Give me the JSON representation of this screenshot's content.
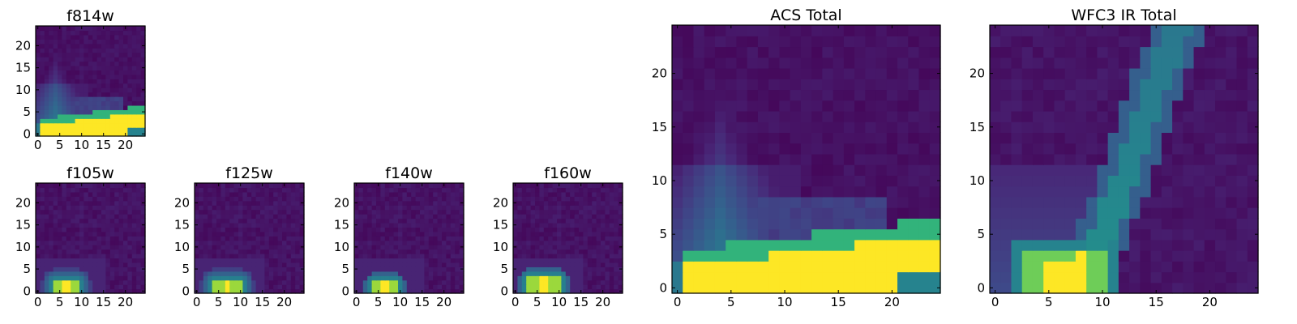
{
  "figure": {
    "colormap": "viridis",
    "colors": {
      "low": "#440154",
      "mid": "#21918c",
      "high": "#fde725",
      "frame": "#000000"
    }
  },
  "chart_data": [
    {
      "id": "f814w",
      "type": "heatmap",
      "title": "f814w",
      "xlim": [
        0,
        24
      ],
      "ylim": [
        0,
        24
      ],
      "xticks": [
        "0",
        "5",
        "10",
        "15",
        "20"
      ],
      "yticks": [
        "0",
        "5",
        "10",
        "15",
        "20"
      ],
      "pattern": "acs"
    },
    {
      "id": "f105w",
      "type": "heatmap",
      "title": "f105w",
      "xlim": [
        0,
        24
      ],
      "ylim": [
        0,
        24
      ],
      "xticks": [
        "0",
        "5",
        "10",
        "15",
        "20"
      ],
      "yticks": [
        "0",
        "5",
        "10",
        "15",
        "20"
      ],
      "pattern": "blob",
      "blob": {
        "x": [
          4,
          9
        ],
        "y": [
          0,
          2
        ],
        "halo": 3
      }
    },
    {
      "id": "f125w",
      "type": "heatmap",
      "title": "f125w",
      "xlim": [
        0,
        24
      ],
      "ylim": [
        0,
        24
      ],
      "xticks": [
        "0",
        "5",
        "10",
        "15",
        "20"
      ],
      "yticks": [
        "0",
        "5",
        "10",
        "15",
        "20"
      ],
      "pattern": "blob",
      "blob": {
        "x": [
          4,
          10
        ],
        "y": [
          0,
          2
        ],
        "halo": 3
      }
    },
    {
      "id": "f140w",
      "type": "heatmap",
      "title": "f140w",
      "xlim": [
        0,
        24
      ],
      "ylim": [
        0,
        24
      ],
      "xticks": [
        "0",
        "5",
        "10",
        "15",
        "20"
      ],
      "yticks": [
        "0",
        "5",
        "10",
        "15",
        "20"
      ],
      "pattern": "blob",
      "blob": {
        "x": [
          4,
          9
        ],
        "y": [
          0,
          2
        ],
        "halo": 2
      }
    },
    {
      "id": "f160w",
      "type": "heatmap",
      "title": "f160w",
      "xlim": [
        0,
        24
      ],
      "ylim": [
        0,
        24
      ],
      "xticks": [
        "0",
        "5",
        "10",
        "15",
        "20"
      ],
      "yticks": [
        "0",
        "5",
        "10",
        "15",
        "20"
      ],
      "pattern": "blob",
      "blob": {
        "x": [
          3,
          10
        ],
        "y": [
          0,
          3
        ],
        "halo": 2
      }
    },
    {
      "id": "acs_total",
      "type": "heatmap",
      "title": "ACS Total",
      "xlim": [
        0,
        24
      ],
      "ylim": [
        0,
        24
      ],
      "xticks": [
        "0",
        "5",
        "10",
        "15",
        "20"
      ],
      "yticks": [
        "0",
        "5",
        "10",
        "15",
        "20"
      ],
      "pattern": "acs"
    },
    {
      "id": "wfc3_ir_total",
      "type": "heatmap",
      "title": "WFC3 IR Total",
      "xlim": [
        0,
        24
      ],
      "ylim": [
        0,
        24
      ],
      "xticks": [
        "0",
        "5",
        "10",
        "15",
        "20"
      ],
      "yticks": [
        "0",
        "5",
        "10",
        "15",
        "20"
      ],
      "pattern": "ir"
    }
  ]
}
